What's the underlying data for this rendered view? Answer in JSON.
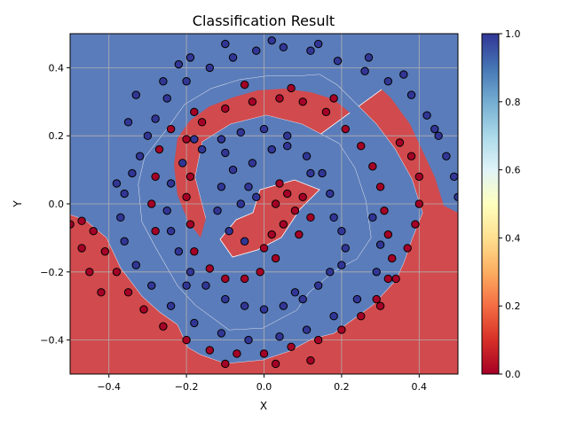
{
  "chart_data": {
    "type": "scatter",
    "title": "Classification Result",
    "xlabel": "X",
    "ylabel": "Y",
    "xlim": [
      -0.5,
      0.5
    ],
    "ylim": [
      -0.5,
      0.5
    ],
    "xticks": [
      "−0.4",
      "−0.2",
      "0.0",
      "0.2",
      "0.4"
    ],
    "xtick_values": [
      -0.4,
      -0.2,
      0.0,
      0.2,
      0.4
    ],
    "yticks": [
      "−0.4",
      "−0.2",
      "0.0",
      "0.2",
      "0.4"
    ],
    "ytick_values": [
      -0.4,
      -0.2,
      0.0,
      0.2,
      0.4
    ],
    "grid": true,
    "background": "decision regions (class 0 red, class 1 blue) forming a two-arm spiral",
    "colorbar": {
      "colormap": "RdYlBu",
      "range": [
        0.0,
        1.0
      ],
      "ticks": [
        "0.0",
        "0.2",
        "0.4",
        "0.6",
        "0.8",
        "1.0"
      ],
      "tick_values": [
        0.0,
        0.2,
        0.4,
        0.6,
        0.8,
        1.0
      ]
    },
    "colors": {
      "class0": "#a50026",
      "class1": "#313695",
      "region0": "#d14a4d",
      "region1": "#5b7cba"
    },
    "series": [
      {
        "class": 1,
        "color": "#313695",
        "points": [
          [
            -0.03,
            0.12
          ],
          [
            -0.08,
            0.1
          ],
          [
            -0.11,
            0.05
          ],
          [
            -0.12,
            -0.02
          ],
          [
            -0.09,
            -0.08
          ],
          [
            -0.05,
            -0.11
          ],
          [
            -0.02,
            0.02
          ],
          [
            -0.04,
            0.05
          ],
          [
            -0.06,
            0.0
          ],
          [
            0.02,
            0.16
          ],
          [
            0.06,
            0.17
          ],
          [
            0.11,
            0.14
          ],
          [
            0.15,
            0.09
          ],
          [
            0.17,
            0.03
          ],
          [
            0.18,
            -0.04
          ],
          [
            0.2,
            -0.08
          ],
          [
            0.21,
            -0.13
          ],
          [
            0.2,
            -0.18
          ],
          [
            0.17,
            -0.2
          ],
          [
            0.14,
            -0.24
          ],
          [
            0.1,
            -0.28
          ],
          [
            0.05,
            -0.3
          ],
          [
            0.0,
            -0.31
          ],
          [
            -0.05,
            -0.3
          ],
          [
            -0.1,
            -0.28
          ],
          [
            -0.15,
            -0.24
          ],
          [
            -0.19,
            -0.2
          ],
          [
            -0.22,
            -0.14
          ],
          [
            -0.24,
            -0.08
          ],
          [
            -0.25,
            -0.02
          ],
          [
            -0.24,
            0.06
          ],
          [
            -0.21,
            0.12
          ],
          [
            -0.16,
            0.16
          ],
          [
            -0.11,
            0.19
          ],
          [
            -0.06,
            0.21
          ],
          [
            0.0,
            0.22
          ],
          [
            0.06,
            0.2
          ],
          [
            -0.18,
            0.19
          ],
          [
            -0.1,
            0.15
          ],
          [
            0.12,
            0.09
          ],
          [
            0.08,
            -0.26
          ],
          [
            -0.2,
            -0.24
          ],
          [
            -0.32,
            0.14
          ],
          [
            -0.34,
            0.09
          ],
          [
            -0.36,
            0.03
          ],
          [
            -0.37,
            -0.04
          ],
          [
            -0.36,
            -0.11
          ],
          [
            -0.33,
            -0.18
          ],
          [
            -0.29,
            -0.24
          ],
          [
            -0.24,
            -0.3
          ],
          [
            -0.18,
            -0.35
          ],
          [
            -0.11,
            -0.38
          ],
          [
            -0.04,
            -0.4
          ],
          [
            0.04,
            -0.39
          ],
          [
            0.11,
            -0.37
          ],
          [
            0.18,
            -0.33
          ],
          [
            0.24,
            -0.28
          ],
          [
            0.29,
            -0.2
          ],
          [
            0.3,
            -0.12
          ],
          [
            0.28,
            -0.04
          ],
          [
            -0.3,
            0.2
          ],
          [
            -0.28,
            0.25
          ],
          [
            -0.25,
            0.31
          ],
          [
            -0.2,
            0.36
          ],
          [
            -0.14,
            0.4
          ],
          [
            -0.08,
            0.43
          ],
          [
            -0.02,
            0.45
          ],
          [
            0.05,
            0.46
          ],
          [
            0.12,
            0.45
          ],
          [
            0.19,
            0.42
          ],
          [
            0.26,
            0.39
          ],
          [
            0.32,
            0.36
          ],
          [
            0.38,
            0.32
          ],
          [
            0.42,
            0.26
          ],
          [
            0.45,
            0.2
          ],
          [
            0.47,
            0.14
          ],
          [
            0.49,
            0.08
          ],
          [
            0.5,
            0.02
          ],
          [
            -0.33,
            0.32
          ],
          [
            -0.26,
            0.36
          ],
          [
            -0.19,
            0.43
          ],
          [
            -0.1,
            0.47
          ],
          [
            0.02,
            0.48
          ],
          [
            0.14,
            0.47
          ],
          [
            0.27,
            0.43
          ],
          [
            0.36,
            0.38
          ],
          [
            0.44,
            0.22
          ],
          [
            -0.38,
            0.06
          ],
          [
            -0.35,
            0.24
          ],
          [
            -0.22,
            0.41
          ]
        ]
      },
      {
        "class": 0,
        "color": "#a50026",
        "points": [
          [
            0.03,
            0.0
          ],
          [
            0.06,
            0.03
          ],
          [
            0.08,
            -0.02
          ],
          [
            0.05,
            -0.06
          ],
          [
            0.02,
            -0.09
          ],
          [
            0.0,
            -0.13
          ],
          [
            0.04,
            0.06
          ],
          [
            0.1,
            0.02
          ],
          [
            0.12,
            -0.04
          ],
          [
            0.09,
            -0.09
          ],
          [
            0.03,
            -0.16
          ],
          [
            -0.01,
            -0.2
          ],
          [
            -0.05,
            -0.22
          ],
          [
            -0.1,
            -0.22
          ],
          [
            -0.14,
            -0.19
          ],
          [
            -0.18,
            -0.14
          ],
          [
            -0.19,
            -0.06
          ],
          [
            -0.2,
            0.02
          ],
          [
            -0.19,
            0.08
          ],
          [
            -0.2,
            0.19
          ],
          [
            -0.16,
            0.24
          ],
          [
            -0.1,
            0.28
          ],
          [
            -0.03,
            0.3
          ],
          [
            0.04,
            0.31
          ],
          [
            0.1,
            0.3
          ],
          [
            0.16,
            0.27
          ],
          [
            0.21,
            0.22
          ],
          [
            0.25,
            0.17
          ],
          [
            0.28,
            0.11
          ],
          [
            0.3,
            0.05
          ],
          [
            0.31,
            -0.02
          ],
          [
            0.32,
            -0.09
          ],
          [
            0.33,
            -0.16
          ],
          [
            0.32,
            -0.22
          ],
          [
            0.29,
            -0.28
          ],
          [
            0.25,
            -0.33
          ],
          [
            0.2,
            -0.37
          ],
          [
            0.14,
            -0.4
          ],
          [
            0.07,
            -0.42
          ],
          [
            0.0,
            -0.44
          ],
          [
            -0.07,
            -0.44
          ],
          [
            -0.14,
            -0.43
          ],
          [
            -0.2,
            -0.4
          ],
          [
            -0.26,
            -0.36
          ],
          [
            -0.31,
            -0.31
          ],
          [
            -0.35,
            -0.26
          ],
          [
            -0.38,
            -0.2
          ],
          [
            -0.41,
            -0.14
          ],
          [
            -0.44,
            -0.08
          ],
          [
            -0.47,
            -0.05
          ],
          [
            -0.5,
            -0.06
          ],
          [
            -0.24,
            0.22
          ],
          [
            -0.27,
            0.16
          ],
          [
            -0.28,
            0.08
          ],
          [
            -0.29,
            0.0
          ],
          [
            -0.28,
            -0.08
          ],
          [
            0.38,
            0.14
          ],
          [
            0.4,
            0.08
          ],
          [
            0.4,
            0.0
          ],
          [
            0.39,
            -0.06
          ],
          [
            0.37,
            -0.13
          ],
          [
            0.34,
            -0.22
          ],
          [
            0.3,
            -0.3
          ],
          [
            -0.45,
            -0.2
          ],
          [
            -0.47,
            -0.13
          ],
          [
            -0.42,
            -0.26
          ],
          [
            -0.1,
            -0.47
          ],
          [
            0.03,
            -0.47
          ],
          [
            0.12,
            -0.46
          ],
          [
            -0.05,
            0.35
          ],
          [
            0.07,
            0.34
          ],
          [
            0.18,
            0.31
          ],
          [
            0.35,
            0.18
          ],
          [
            -0.18,
            0.27
          ]
        ]
      }
    ]
  }
}
